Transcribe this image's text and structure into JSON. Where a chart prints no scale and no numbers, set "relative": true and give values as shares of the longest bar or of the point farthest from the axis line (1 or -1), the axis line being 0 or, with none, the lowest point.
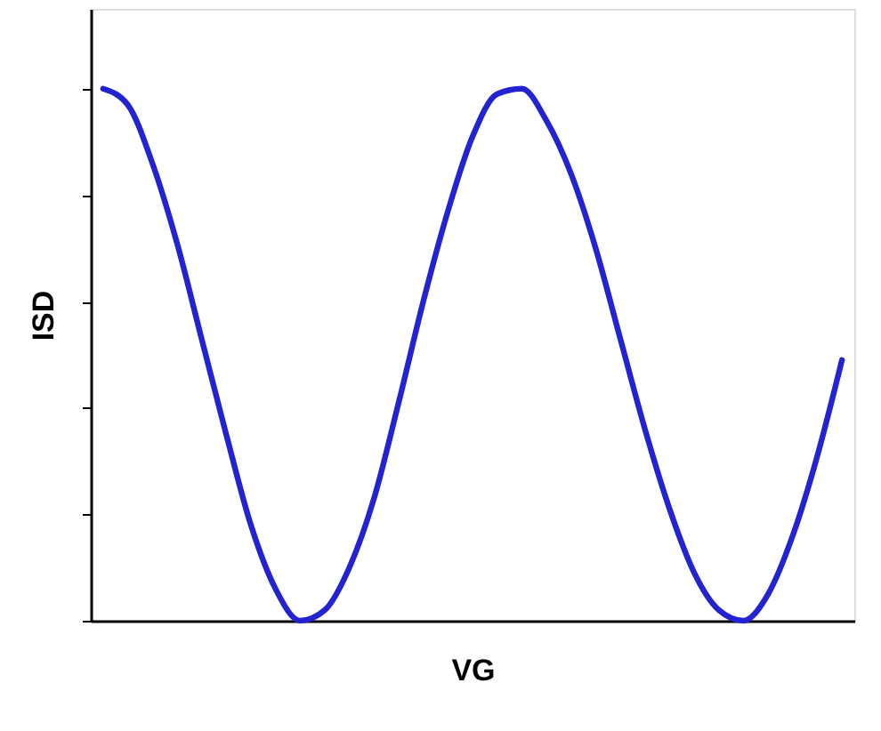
{
  "chart_data": {
    "type": "line",
    "relative": true,
    "xlabel": "VG",
    "ylabel": "ISD",
    "grid": false,
    "marker": "none",
    "line_style": "solid",
    "categories": [
      null,
      null,
      null,
      null,
      null,
      null,
      null,
      null,
      null,
      null,
      null,
      null,
      null,
      null,
      null,
      null,
      null,
      null,
      null,
      null,
      null,
      null,
      null,
      null,
      null,
      null,
      null,
      null,
      null,
      null,
      null
    ],
    "series": [
      {
        "color": "#2323d2",
        "values": [
          1.0,
          0.97,
          0.86,
          0.71,
          0.53,
          0.35,
          0.18,
          0.06,
          0.0,
          0.02,
          0.1,
          0.23,
          0.41,
          0.6,
          0.77,
          0.91,
          0.99,
          1.0,
          0.94,
          0.84,
          0.7,
          0.53,
          0.36,
          0.21,
          0.09,
          0.02,
          0.0,
          0.05,
          0.16,
          0.31,
          0.49
        ]
      }
    ]
  }
}
